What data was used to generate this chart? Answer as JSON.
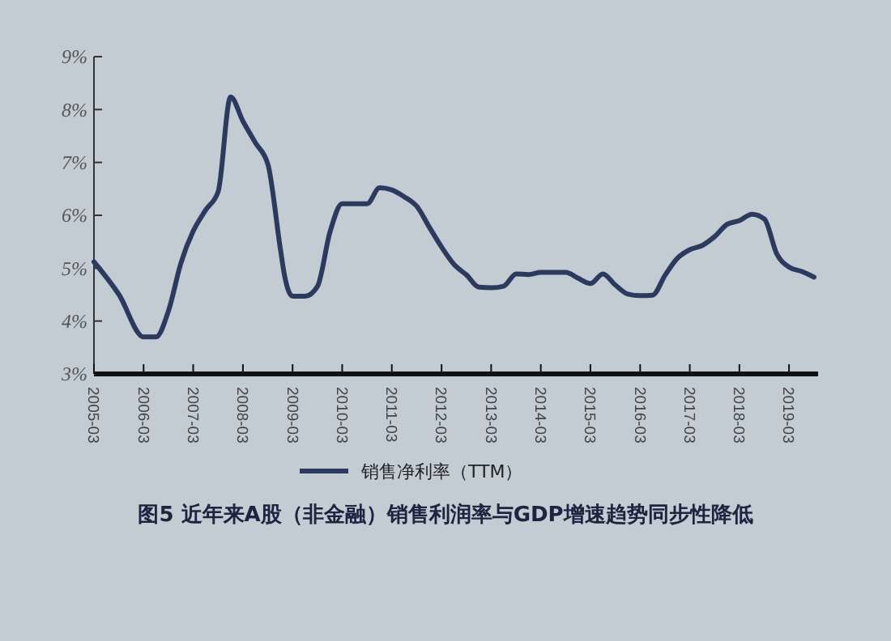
{
  "chart_data": {
    "type": "line",
    "title": "图5  近年来A股（非金融）销售利润率与GDP增速趋势同步性降低",
    "x": [
      "2005-03",
      "2005-09",
      "2006-03",
      "2006-06",
      "2006-09",
      "2006-12",
      "2007-03",
      "2007-06",
      "2007-09",
      "2007-12",
      "2008-03",
      "2008-06",
      "2008-09",
      "2008-12",
      "2009-01",
      "2009-03",
      "2009-06",
      "2009-09",
      "2009-12",
      "2010-03",
      "2010-06",
      "2010-09",
      "2010-12",
      "2011-03",
      "2011-06",
      "2011-09",
      "2011-12",
      "2012-03",
      "2012-06",
      "2012-09",
      "2012-12",
      "2013-03",
      "2013-06",
      "2013-09",
      "2013-12",
      "2014-03",
      "2014-06",
      "2014-09",
      "2014-12",
      "2015-03",
      "2015-06",
      "2015-09",
      "2015-12",
      "2016-03",
      "2016-06",
      "2016-09",
      "2016-12",
      "2017-03",
      "2017-06",
      "2017-09",
      "2017-12",
      "2018-03",
      "2018-06",
      "2018-09",
      "2018-12",
      "2019-03",
      "2019-06",
      "2019-09"
    ],
    "series": [
      {
        "name": "销售净利率（TTM）",
        "color": "#2b3a5e",
        "values": [
          5.12,
          4.5,
          3.7,
          3.7,
          4.2,
          5.1,
          5.7,
          6.1,
          6.45,
          8.24,
          7.78,
          7.37,
          6.96,
          5.37,
          4.86,
          4.47,
          4.47,
          4.66,
          5.68,
          6.22,
          6.22,
          6.22,
          6.52,
          6.48,
          6.35,
          6.17,
          5.78,
          5.4,
          5.07,
          4.87,
          4.64,
          4.63,
          4.66,
          4.89,
          4.88,
          4.92,
          4.92,
          4.92,
          4.81,
          4.71,
          4.89,
          4.68,
          4.51,
          4.48,
          4.49,
          4.87,
          5.19,
          5.35,
          5.43,
          5.6,
          5.83,
          5.9,
          6.02,
          5.93,
          5.27,
          5.02,
          4.94,
          4.83
        ]
      }
    ],
    "xlim": [
      "2005-03",
      "2019-10"
    ],
    "xticks": [
      {
        "value": "2005-03",
        "label": "2005-03"
      },
      {
        "value": "2006-03",
        "label": "2006-03"
      },
      {
        "value": "2007-03",
        "label": "2007-03"
      },
      {
        "value": "2008-03",
        "label": "2008-03"
      },
      {
        "value": "2009-03",
        "label": "2009-03"
      },
      {
        "value": "2010-03",
        "label": "2010-03"
      },
      {
        "value": "2011-03",
        "label": "2011-03"
      },
      {
        "value": "2012-03",
        "label": "2012-03"
      },
      {
        "value": "2013-03",
        "label": "2013-03"
      },
      {
        "value": "2014-03",
        "label": "2014-03"
      },
      {
        "value": "2015-03",
        "label": "2015-03"
      },
      {
        "value": "2016-03",
        "label": "2016-03"
      },
      {
        "value": "2017-03",
        "label": "2017-03"
      },
      {
        "value": "2018-03",
        "label": "2018-03"
      },
      {
        "value": "2019-03",
        "label": "2019-03"
      }
    ],
    "ylim": [
      3,
      9
    ],
    "yticks": [
      {
        "value": 3,
        "label": "3%"
      },
      {
        "value": 4,
        "label": "4%"
      },
      {
        "value": 5,
        "label": "5%"
      },
      {
        "value": 6,
        "label": "6%"
      },
      {
        "value": 7,
        "label": "7%"
      },
      {
        "value": 8,
        "label": "8%"
      },
      {
        "value": 9,
        "label": "9%"
      }
    ],
    "grid": false,
    "legend": "bottom",
    "marker": "none",
    "line_style": "solid"
  }
}
